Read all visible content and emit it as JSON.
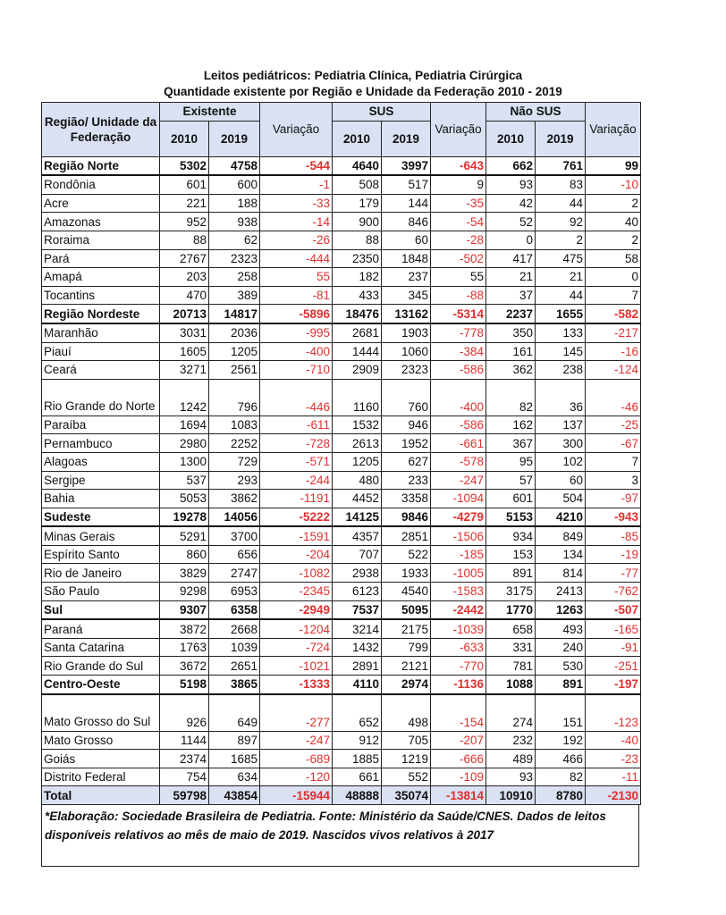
{
  "title_line1": "Leitos pediátricos: Pediatria Clínica, Pediatria Cirúrgica",
  "title_line2": "Quantidade existente por Região e Unidade da Federação 2010 - 2019",
  "header": {
    "region_col": "Região/ Unidade da Federação",
    "existente": "Existente",
    "sus": "SUS",
    "nao_sus": "Não SUS",
    "y2010": "2010",
    "y2019": "2019",
    "variacao": "Variação"
  },
  "colors": {
    "negative": "#e0302f",
    "header_bg": "#d9e1f2"
  },
  "rows": [
    {
      "type": "region",
      "name": "Região Norte",
      "v": [
        "5302",
        "4758",
        "-544",
        "4640",
        "3997",
        "-643",
        "662",
        "761",
        "99"
      ]
    },
    {
      "name": "Rondônia",
      "v": [
        "601",
        "600",
        "-1",
        "508",
        "517",
        "9",
        "93",
        "83",
        "-10"
      ]
    },
    {
      "name": "Acre",
      "v": [
        "221",
        "188",
        "-33",
        "179",
        "144",
        "-35",
        "42",
        "44",
        "2"
      ]
    },
    {
      "name": "Amazonas",
      "v": [
        "952",
        "938",
        "-14",
        "900",
        "846",
        "-54",
        "52",
        "92",
        "40"
      ]
    },
    {
      "name": "Roraima",
      "v": [
        "88",
        "62",
        "-26",
        "88",
        "60",
        "-28",
        "0",
        "2",
        "2"
      ]
    },
    {
      "name": "Pará",
      "v": [
        "2767",
        "2323",
        "-444",
        "2350",
        "1848",
        "-502",
        "417",
        "475",
        "58"
      ]
    },
    {
      "name": "Amapá",
      "v": [
        "203",
        "258",
        "55",
        "182",
        "237",
        "55",
        "21",
        "21",
        "0"
      ],
      "red_cols": [
        2
      ]
    },
    {
      "name": "Tocantins",
      "v": [
        "470",
        "389",
        "-81",
        "433",
        "345",
        "-88",
        "37",
        "44",
        "7"
      ]
    },
    {
      "type": "region",
      "name": "Região Nordeste",
      "v": [
        "20713",
        "14817",
        "-5896",
        "18476",
        "13162",
        "-5314",
        "2237",
        "1655",
        "-582"
      ]
    },
    {
      "name": "Maranhão",
      "v": [
        "3031",
        "2036",
        "-995",
        "2681",
        "1903",
        "-778",
        "350",
        "133",
        "-217"
      ]
    },
    {
      "name": "Piauí",
      "v": [
        "1605",
        "1205",
        "-400",
        "1444",
        "1060",
        "-384",
        "161",
        "145",
        "-16"
      ]
    },
    {
      "name": "Ceará",
      "v": [
        "3271",
        "2561",
        "-710",
        "2909",
        "2323",
        "-586",
        "362",
        "238",
        "-124"
      ]
    },
    {
      "type": "tall",
      "name": "Rio Grande do Norte",
      "v": [
        "1242",
        "796",
        "-446",
        "1160",
        "760",
        "-400",
        "82",
        "36",
        "-46"
      ]
    },
    {
      "name": "Paraíba",
      "v": [
        "1694",
        "1083",
        "-611",
        "1532",
        "946",
        "-586",
        "162",
        "137",
        "-25"
      ]
    },
    {
      "name": "Pernambuco",
      "v": [
        "2980",
        "2252",
        "-728",
        "2613",
        "1952",
        "-661",
        "367",
        "300",
        "-67"
      ]
    },
    {
      "name": "Alagoas",
      "v": [
        "1300",
        "729",
        "-571",
        "1205",
        "627",
        "-578",
        "95",
        "102",
        "7"
      ]
    },
    {
      "name": "Sergipe",
      "v": [
        "537",
        "293",
        "-244",
        "480",
        "233",
        "-247",
        "57",
        "60",
        "3"
      ]
    },
    {
      "name": "Bahia",
      "v": [
        "5053",
        "3862",
        "-1191",
        "4452",
        "3358",
        "-1094",
        "601",
        "504",
        "-97"
      ]
    },
    {
      "type": "region",
      "name": "Sudeste",
      "v": [
        "19278",
        "14056",
        "-5222",
        "14125",
        "9846",
        "-4279",
        "5153",
        "4210",
        "-943"
      ]
    },
    {
      "name": "Minas Gerais",
      "v": [
        "5291",
        "3700",
        "-1591",
        "4357",
        "2851",
        "-1506",
        "934",
        "849",
        "-85"
      ]
    },
    {
      "name": "Espírito Santo",
      "v": [
        "860",
        "656",
        "-204",
        "707",
        "522",
        "-185",
        "153",
        "134",
        "-19"
      ]
    },
    {
      "name": "Rio de Janeiro",
      "v": [
        "3829",
        "2747",
        "-1082",
        "2938",
        "1933",
        "-1005",
        "891",
        "814",
        "-77"
      ]
    },
    {
      "name": "São Paulo",
      "v": [
        "9298",
        "6953",
        "-2345",
        "6123",
        "4540",
        "-1583",
        "3175",
        "2413",
        "-762"
      ]
    },
    {
      "type": "region",
      "name": "Sul",
      "v": [
        "9307",
        "6358",
        "-2949",
        "7537",
        "5095",
        "-2442",
        "1770",
        "1263",
        "-507"
      ]
    },
    {
      "name": "Paraná",
      "v": [
        "3872",
        "2668",
        "-1204",
        "3214",
        "2175",
        "-1039",
        "658",
        "493",
        "-165"
      ]
    },
    {
      "name": "Santa Catarina",
      "v": [
        "1763",
        "1039",
        "-724",
        "1432",
        "799",
        "-633",
        "331",
        "240",
        "-91"
      ]
    },
    {
      "name": "Rio Grande do Sul",
      "v": [
        "3672",
        "2651",
        "-1021",
        "2891",
        "2121",
        "-770",
        "781",
        "530",
        "-251"
      ]
    },
    {
      "type": "region",
      "name": "Centro-Oeste",
      "v": [
        "5198",
        "3865",
        "-1333",
        "4110",
        "2974",
        "-1136",
        "1088",
        "891",
        "-197"
      ]
    },
    {
      "type": "tall",
      "name": "Mato Grosso do Sul",
      "v": [
        "926",
        "649",
        "-277",
        "652",
        "498",
        "-154",
        "274",
        "151",
        "-123"
      ]
    },
    {
      "name": "Mato Grosso",
      "v": [
        "1144",
        "897",
        "-247",
        "912",
        "705",
        "-207",
        "232",
        "192",
        "-40"
      ]
    },
    {
      "name": "Goiás",
      "v": [
        "2374",
        "1685",
        "-689",
        "1885",
        "1219",
        "-666",
        "489",
        "466",
        "-23"
      ]
    },
    {
      "name": "Distrito Federal",
      "v": [
        "754",
        "634",
        "-120",
        "661",
        "552",
        "-109",
        "93",
        "82",
        "-11"
      ]
    },
    {
      "type": "total",
      "name": "Total",
      "v": [
        "59798",
        "43854",
        "-15944",
        "48888",
        "35074",
        "-13814",
        "10910",
        "8780",
        "-2130"
      ]
    }
  ],
  "footnote": "*Elaboração: Sociedade Brasileira de Pediatria. Fonte: Ministério da Saúde/CNES. Dados de leitos disponíveis relativos ao mês de maio de 2019. Nascidos vivos relativos à 2017"
}
